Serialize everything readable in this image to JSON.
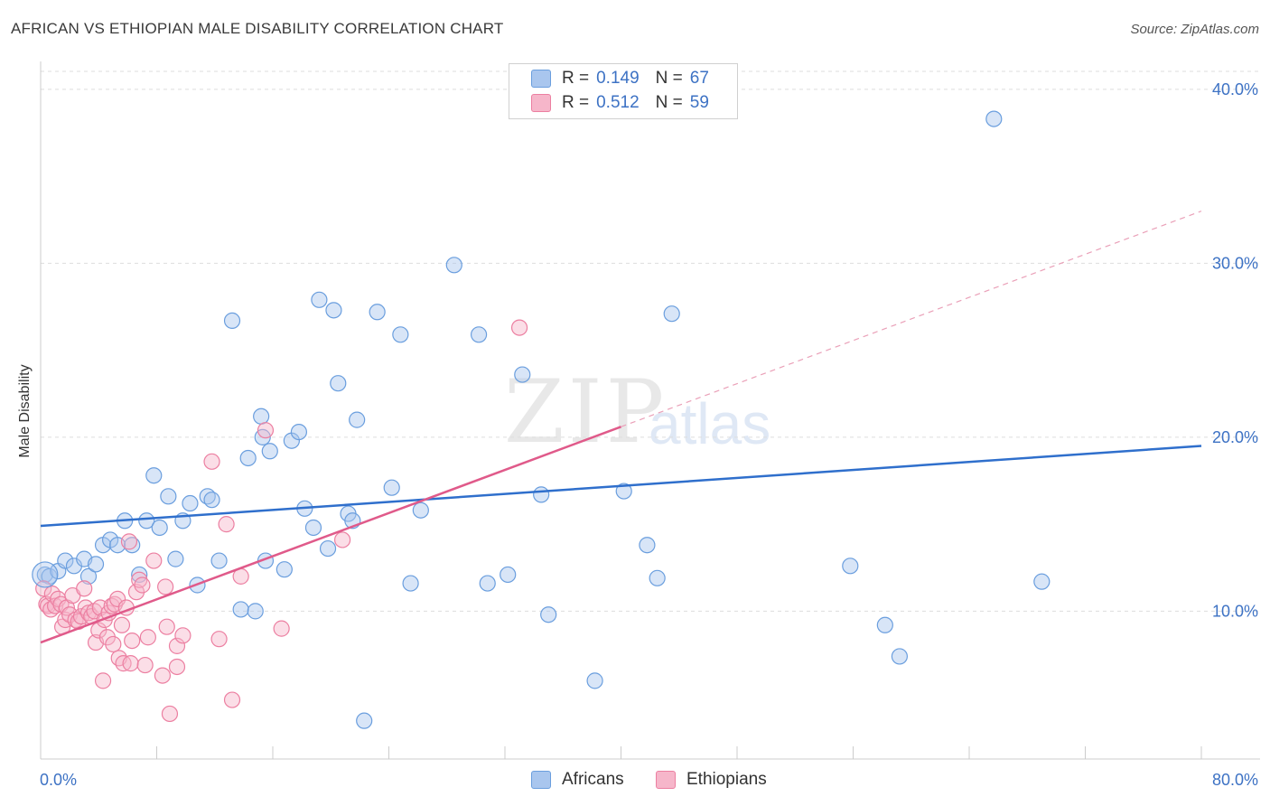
{
  "title": "AFRICAN VS ETHIOPIAN MALE DISABILITY CORRELATION CHART",
  "source": "Source: ZipAtlas.com",
  "watermark": {
    "zip": "ZIP",
    "atlas": "atlas"
  },
  "legend": {
    "rows": [
      {
        "r_label": "R =",
        "r_value": "0.149",
        "n_label": "N =",
        "n_value": "67",
        "color": "#a9c6ee"
      },
      {
        "r_label": "R =",
        "r_value": "0.512",
        "n_label": "N =",
        "n_value": "59",
        "color": "#f6b6ca"
      }
    ]
  },
  "bottom_legend": {
    "africans": "Africans",
    "ethiopians": "Ethiopians"
  },
  "chart_data": {
    "type": "scatter",
    "ylabel": "Male Disability",
    "x_tick_labels": [
      "0.0%",
      "80.0%"
    ],
    "y_tick_labels": [
      "10.0%",
      "20.0%",
      "30.0%",
      "40.0%"
    ],
    "xlim": [
      0,
      80
    ],
    "ylim": [
      1.5,
      41.5
    ],
    "grid": true,
    "series": [
      {
        "name": "Africans",
        "color": "#6a9ede",
        "fill": "#a9c6ee",
        "trend": {
          "x": [
            0,
            80
          ],
          "y": [
            14.9,
            19.5
          ],
          "color": "#2f6fcc"
        },
        "points": [
          [
            0.3,
            12.1
          ],
          [
            0.6,
            12.0
          ],
          [
            1.2,
            12.3
          ],
          [
            1.7,
            12.9
          ],
          [
            2.3,
            12.6
          ],
          [
            3.0,
            13.0
          ],
          [
            3.3,
            12.0
          ],
          [
            3.8,
            12.7
          ],
          [
            4.3,
            13.8
          ],
          [
            4.8,
            14.1
          ],
          [
            5.3,
            13.8
          ],
          [
            5.8,
            15.2
          ],
          [
            6.3,
            13.8
          ],
          [
            6.8,
            12.1
          ],
          [
            7.3,
            15.2
          ],
          [
            7.8,
            17.8
          ],
          [
            8.2,
            14.8
          ],
          [
            8.8,
            16.6
          ],
          [
            9.3,
            13.0
          ],
          [
            9.8,
            15.2
          ],
          [
            10.3,
            16.2
          ],
          [
            10.8,
            11.5
          ],
          [
            11.5,
            16.6
          ],
          [
            11.8,
            16.4
          ],
          [
            12.3,
            12.9
          ],
          [
            13.2,
            26.7
          ],
          [
            13.8,
            10.1
          ],
          [
            14.3,
            18.8
          ],
          [
            14.8,
            10.0
          ],
          [
            15.5,
            12.9
          ],
          [
            15.3,
            20.0
          ],
          [
            15.2,
            21.2
          ],
          [
            15.8,
            19.2
          ],
          [
            16.8,
            12.4
          ],
          [
            17.3,
            19.8
          ],
          [
            17.8,
            20.3
          ],
          [
            18.2,
            15.9
          ],
          [
            18.8,
            14.8
          ],
          [
            19.2,
            27.9
          ],
          [
            19.8,
            13.6
          ],
          [
            20.2,
            27.3
          ],
          [
            20.5,
            23.1
          ],
          [
            21.2,
            15.6
          ],
          [
            21.5,
            15.2
          ],
          [
            21.8,
            21.0
          ],
          [
            22.3,
            3.7
          ],
          [
            23.2,
            27.2
          ],
          [
            24.2,
            17.1
          ],
          [
            24.8,
            25.9
          ],
          [
            25.5,
            11.6
          ],
          [
            26.2,
            15.8
          ],
          [
            28.5,
            29.9
          ],
          [
            30.2,
            25.9
          ],
          [
            30.8,
            11.6
          ],
          [
            32.2,
            12.1
          ],
          [
            33.2,
            23.6
          ],
          [
            34.5,
            16.7
          ],
          [
            35.0,
            9.8
          ],
          [
            38.2,
            6.0
          ],
          [
            40.2,
            16.9
          ],
          [
            41.8,
            13.8
          ],
          [
            42.5,
            11.9
          ],
          [
            43.5,
            27.1
          ],
          [
            55.8,
            12.6
          ],
          [
            58.2,
            9.2
          ],
          [
            59.2,
            7.4
          ],
          [
            65.7,
            38.3
          ],
          [
            69.0,
            11.7
          ]
        ]
      },
      {
        "name": "Ethiopians",
        "color": "#ec7fa1",
        "fill": "#f6b6ca",
        "trend": {
          "x": [
            0,
            40
          ],
          "y": [
            8.2,
            20.6
          ],
          "dash_to": [
            80,
            33.0
          ],
          "color": "#e05a8a"
        },
        "points": [
          [
            0.2,
            11.3
          ],
          [
            0.4,
            10.4
          ],
          [
            0.5,
            10.3
          ],
          [
            0.7,
            10.1
          ],
          [
            0.8,
            11.0
          ],
          [
            1.0,
            10.3
          ],
          [
            1.2,
            10.7
          ],
          [
            1.4,
            10.4
          ],
          [
            1.5,
            9.1
          ],
          [
            1.7,
            9.5
          ],
          [
            1.8,
            10.2
          ],
          [
            2.0,
            9.8
          ],
          [
            2.2,
            10.9
          ],
          [
            2.4,
            9.5
          ],
          [
            2.6,
            9.4
          ],
          [
            2.8,
            9.7
          ],
          [
            3.0,
            11.3
          ],
          [
            3.1,
            10.2
          ],
          [
            3.3,
            9.9
          ],
          [
            3.5,
            9.7
          ],
          [
            3.7,
            10.0
          ],
          [
            3.8,
            8.2
          ],
          [
            4.0,
            8.9
          ],
          [
            4.1,
            10.2
          ],
          [
            4.3,
            6.0
          ],
          [
            4.4,
            9.5
          ],
          [
            4.6,
            8.5
          ],
          [
            4.7,
            9.9
          ],
          [
            4.9,
            10.3
          ],
          [
            5.0,
            8.1
          ],
          [
            5.1,
            10.4
          ],
          [
            5.3,
            10.7
          ],
          [
            5.4,
            7.3
          ],
          [
            5.6,
            9.2
          ],
          [
            5.7,
            7.0
          ],
          [
            5.9,
            10.2
          ],
          [
            6.1,
            14.0
          ],
          [
            6.2,
            7.0
          ],
          [
            6.3,
            8.3
          ],
          [
            6.6,
            11.1
          ],
          [
            6.8,
            11.8
          ],
          [
            7.0,
            11.5
          ],
          [
            7.2,
            6.9
          ],
          [
            7.4,
            8.5
          ],
          [
            7.8,
            12.9
          ],
          [
            8.4,
            6.3
          ],
          [
            8.6,
            11.4
          ],
          [
            8.7,
            9.1
          ],
          [
            8.9,
            4.1
          ],
          [
            9.4,
            6.8
          ],
          [
            9.4,
            8.0
          ],
          [
            9.8,
            8.6
          ],
          [
            11.8,
            18.6
          ],
          [
            12.3,
            8.4
          ],
          [
            12.8,
            15.0
          ],
          [
            13.2,
            4.9
          ],
          [
            13.8,
            12.0
          ],
          [
            15.5,
            20.4
          ],
          [
            16.6,
            9.0
          ],
          [
            20.8,
            14.1
          ],
          [
            33.0,
            26.3
          ]
        ]
      }
    ]
  }
}
